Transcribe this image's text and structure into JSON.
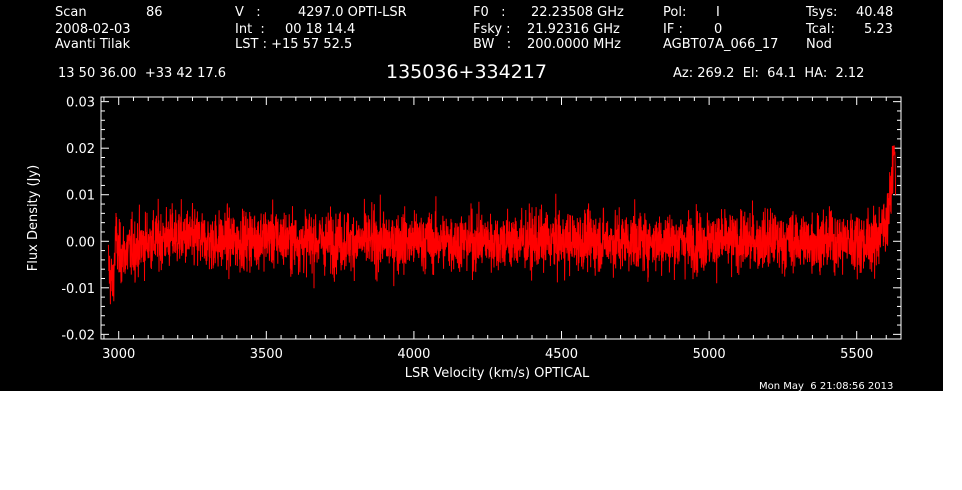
{
  "header": {
    "scan_label": "Scan",
    "scan_number": "86",
    "date": "2008-02-03",
    "observer": "Avanti Tilak",
    "v_label": "V   :",
    "v_value": "4297.0 OPTI-LSR",
    "int_label": "Int  :",
    "int_value": "00 18 14.4",
    "lst_label": "LST : +15 57 52.5",
    "f0_label": "F0   :",
    "f0_value": "22.23508 GHz",
    "fsky_label": "Fsky :",
    "fsky_value": "21.92316 GHz",
    "bw_label": "BW   :",
    "bw_value": "200.0000 MHz",
    "pol_label": "Pol:",
    "pol_value": "I",
    "if_label": "IF :",
    "if_value": "0",
    "project": "AGBT07A_066_17",
    "tsys_label": "Tsys:",
    "tsys_value": "40.48",
    "tcal_label": "Tcal:",
    "tcal_value": "5.23",
    "mode": "Nod",
    "coords": "13 50 36.00  +33 42 17.6",
    "source": "135036+334217",
    "az_el_ha": "Az: 269.2  El:  64.1  HA:  2.12"
  },
  "footer": {
    "timestamp": "Mon May  6 21:08:56 2013"
  },
  "colors": {
    "background": "#000000",
    "axes": "#ffffff",
    "series": "#ff0000"
  },
  "chart_data": {
    "type": "line",
    "title": "135036+334217",
    "xlabel": "LSR Velocity (km/s) OPTICAL",
    "ylabel": "Flux Density (Jy)",
    "xlim": [
      2940,
      5650
    ],
    "ylim": [
      -0.021,
      0.031
    ],
    "xticks": [
      3000,
      3500,
      4000,
      4500,
      5000,
      5500
    ],
    "xtick_labels": [
      "3000",
      "3500",
      "4000",
      "4500",
      "5000",
      "5500"
    ],
    "yticks": [
      -0.02,
      -0.01,
      0.0,
      0.01,
      0.02,
      0.03
    ],
    "ytick_labels": [
      "-0.02",
      "-0.01",
      "0.00",
      "0.01",
      "0.02",
      "0.03"
    ],
    "grid": false,
    "legend": "none",
    "series": [
      {
        "noise_rms": 0.0045,
        "points": [
          [
            2965,
            -0.005
          ],
          [
            2980,
            -0.01
          ],
          [
            2990,
            0.001
          ],
          [
            3000,
            -0.003
          ],
          [
            3100,
            0.0
          ],
          [
            3200,
            0.001
          ],
          [
            3300,
            0.0
          ],
          [
            3400,
            0.0
          ],
          [
            3500,
            0.001
          ],
          [
            3600,
            0.0
          ],
          [
            3700,
            0.0
          ],
          [
            3800,
            0.0
          ],
          [
            3900,
            0.0
          ],
          [
            4000,
            0.0
          ],
          [
            4100,
            0.0
          ],
          [
            4200,
            0.0
          ],
          [
            4300,
            0.0
          ],
          [
            4400,
            0.0
          ],
          [
            4500,
            0.0
          ],
          [
            4600,
            0.0
          ],
          [
            4700,
            0.0
          ],
          [
            4800,
            0.0
          ],
          [
            4900,
            0.0
          ],
          [
            5000,
            0.0
          ],
          [
            5100,
            0.0
          ],
          [
            5200,
            0.0
          ],
          [
            5300,
            0.0
          ],
          [
            5400,
            0.0
          ],
          [
            5500,
            0.0
          ],
          [
            5560,
            0.0
          ],
          [
            5590,
            0.003
          ],
          [
            5605,
            0.006
          ],
          [
            5615,
            0.01
          ],
          [
            5625,
            0.018
          ],
          [
            5628,
            0.02
          ],
          [
            5632,
            0.012
          ]
        ]
      }
    ]
  }
}
